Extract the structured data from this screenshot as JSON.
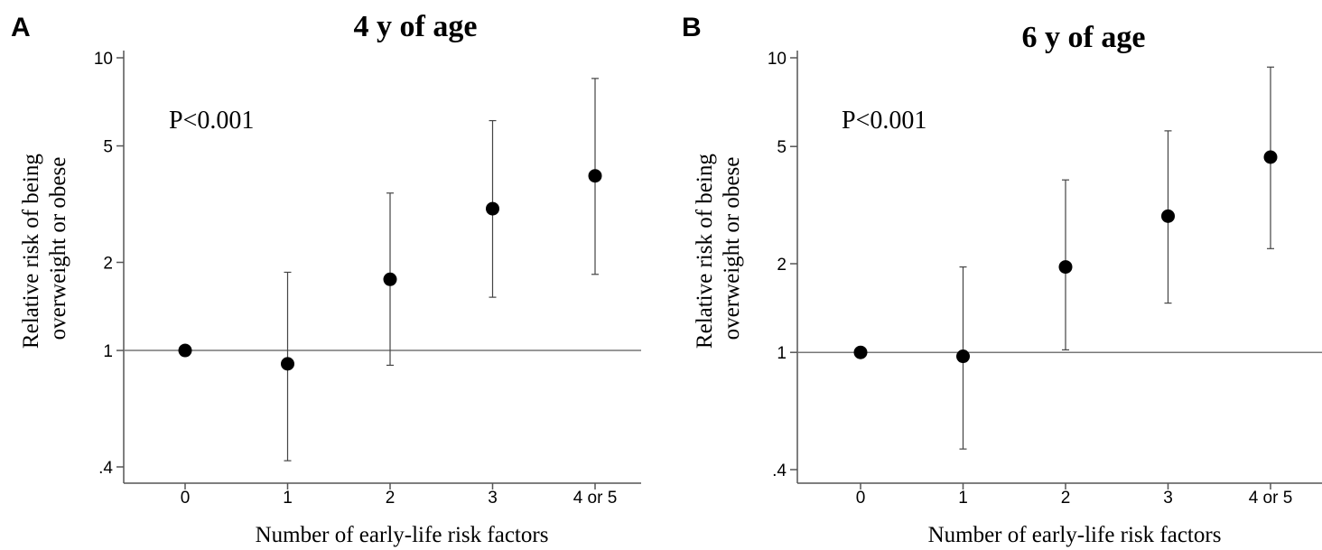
{
  "chart_data": [
    {
      "panel": "A",
      "type": "scatter",
      "title": "4 y of age",
      "annotation": "P<0.001",
      "xlabel": "Number of early-life risk factors",
      "ylabel": [
        "Relative risk of being",
        "overweight or obese"
      ],
      "y_scale": "log",
      "ylim": [
        0.4,
        10
      ],
      "yticks": [
        0.4,
        1,
        2,
        5,
        10
      ],
      "ytick_labels": [
        ".4",
        "1",
        "2",
        "5",
        "10"
      ],
      "reference_line": 1,
      "categories": [
        "0",
        "1",
        "2",
        "3",
        "4 or 5"
      ],
      "values": [
        1.0,
        0.9,
        1.75,
        3.05,
        3.95
      ],
      "ci_lower": [
        null,
        0.42,
        0.89,
        1.52,
        1.82
      ],
      "ci_upper": [
        null,
        1.85,
        3.45,
        6.1,
        8.5
      ]
    },
    {
      "panel": "B",
      "type": "scatter",
      "title": "6 y of age",
      "annotation": "P<0.001",
      "xlabel": "Number of early-life risk factors",
      "ylabel": [
        "Relative risk of being",
        "overweight or obese"
      ],
      "y_scale": "log",
      "ylim": [
        0.4,
        10
      ],
      "yticks": [
        0.4,
        1,
        2,
        5,
        10
      ],
      "ytick_labels": [
        ".4",
        "1",
        "2",
        "5",
        "10"
      ],
      "reference_line": 1,
      "categories": [
        "0",
        "1",
        "2",
        "3",
        "4 or 5"
      ],
      "values": [
        1.0,
        0.97,
        1.95,
        2.9,
        4.6
      ],
      "ci_lower": [
        null,
        0.47,
        1.02,
        1.47,
        2.25
      ],
      "ci_upper": [
        null,
        1.95,
        3.85,
        5.65,
        9.3
      ]
    }
  ]
}
